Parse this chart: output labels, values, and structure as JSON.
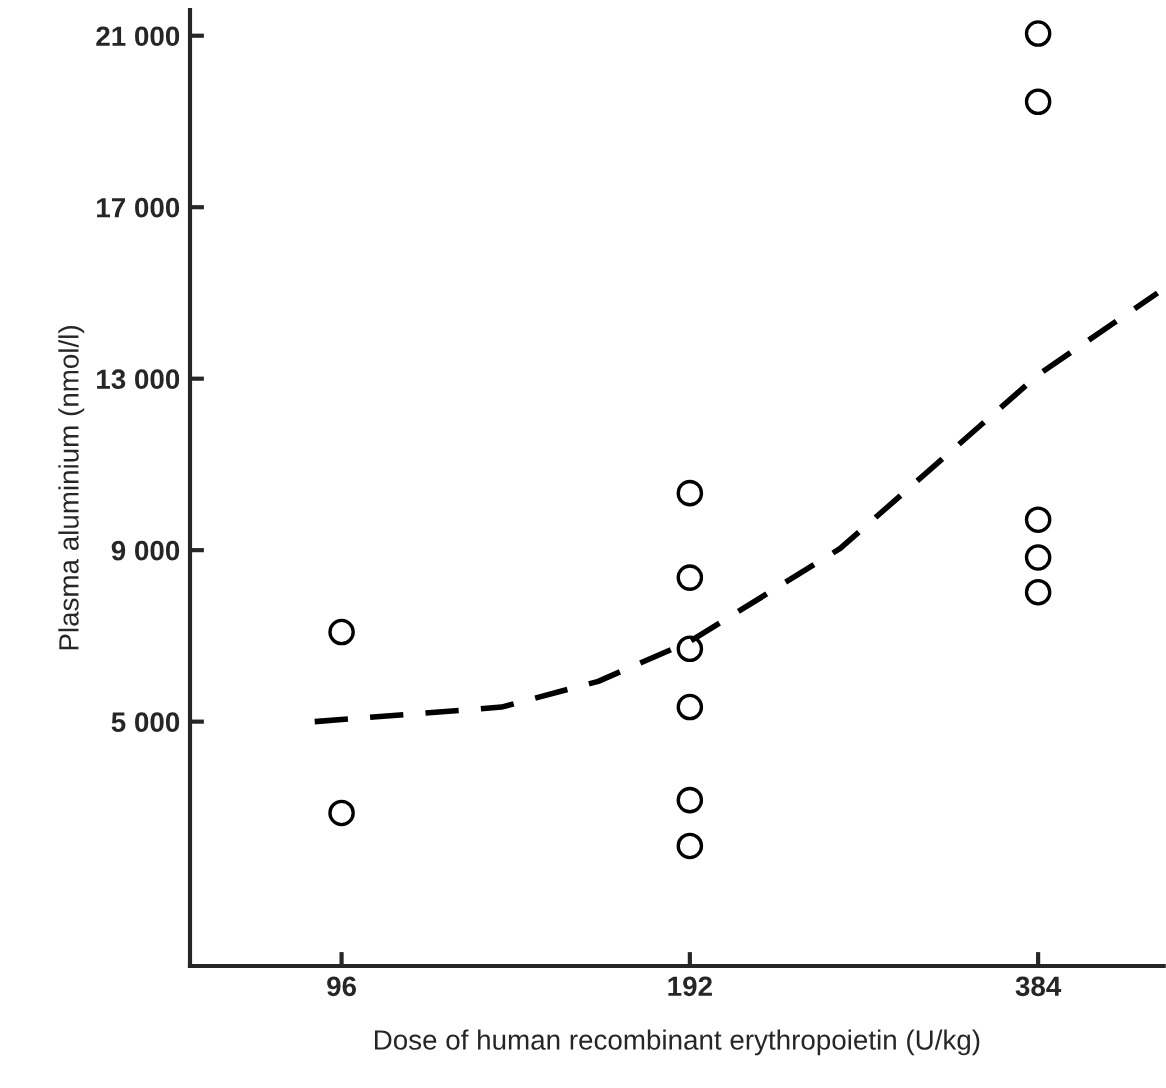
{
  "chart_data": {
    "type": "scatter",
    "xlabel": "Dose of human recombinant erythropoietin (U/kg)",
    "ylabel": "Plasma aluminium (nmol/l)",
    "log": "x",
    "xlim": [
      71,
      493
    ],
    "xticks": [
      96,
      192,
      384
    ],
    "ylim": [
      -700,
      21600
    ],
    "yticks": [
      {
        "value": 5000,
        "label": "5 000"
      },
      {
        "value": 9000,
        "label": "9 000"
      },
      {
        "value": 13000,
        "label": "13 000"
      },
      {
        "value": 17000,
        "label": "17 000"
      },
      {
        "value": 21000,
        "label": "21 000"
      }
    ],
    "grid": false,
    "series": [
      {
        "color": "#000000",
        "marker": "circle",
        "x": [
          96,
          96,
          192,
          192,
          192,
          192,
          192,
          192,
          384,
          384,
          384,
          384,
          384
        ],
        "values": [
          7090,
          2870,
          10330,
          8360,
          6700,
          5340,
          3170,
          2100,
          21050,
          19460,
          9710,
          8830,
          8020
        ]
      },
      {
        "type": "line",
        "color": "#000000",
        "marker": "none",
        "line_style": "dashed",
        "x": [
          91,
          132,
          160,
          192,
          259,
          384,
          487
        ],
        "values": [
          5000,
          5340,
          5940,
          6870,
          9040,
          13090,
          15000
        ]
      }
    ]
  }
}
